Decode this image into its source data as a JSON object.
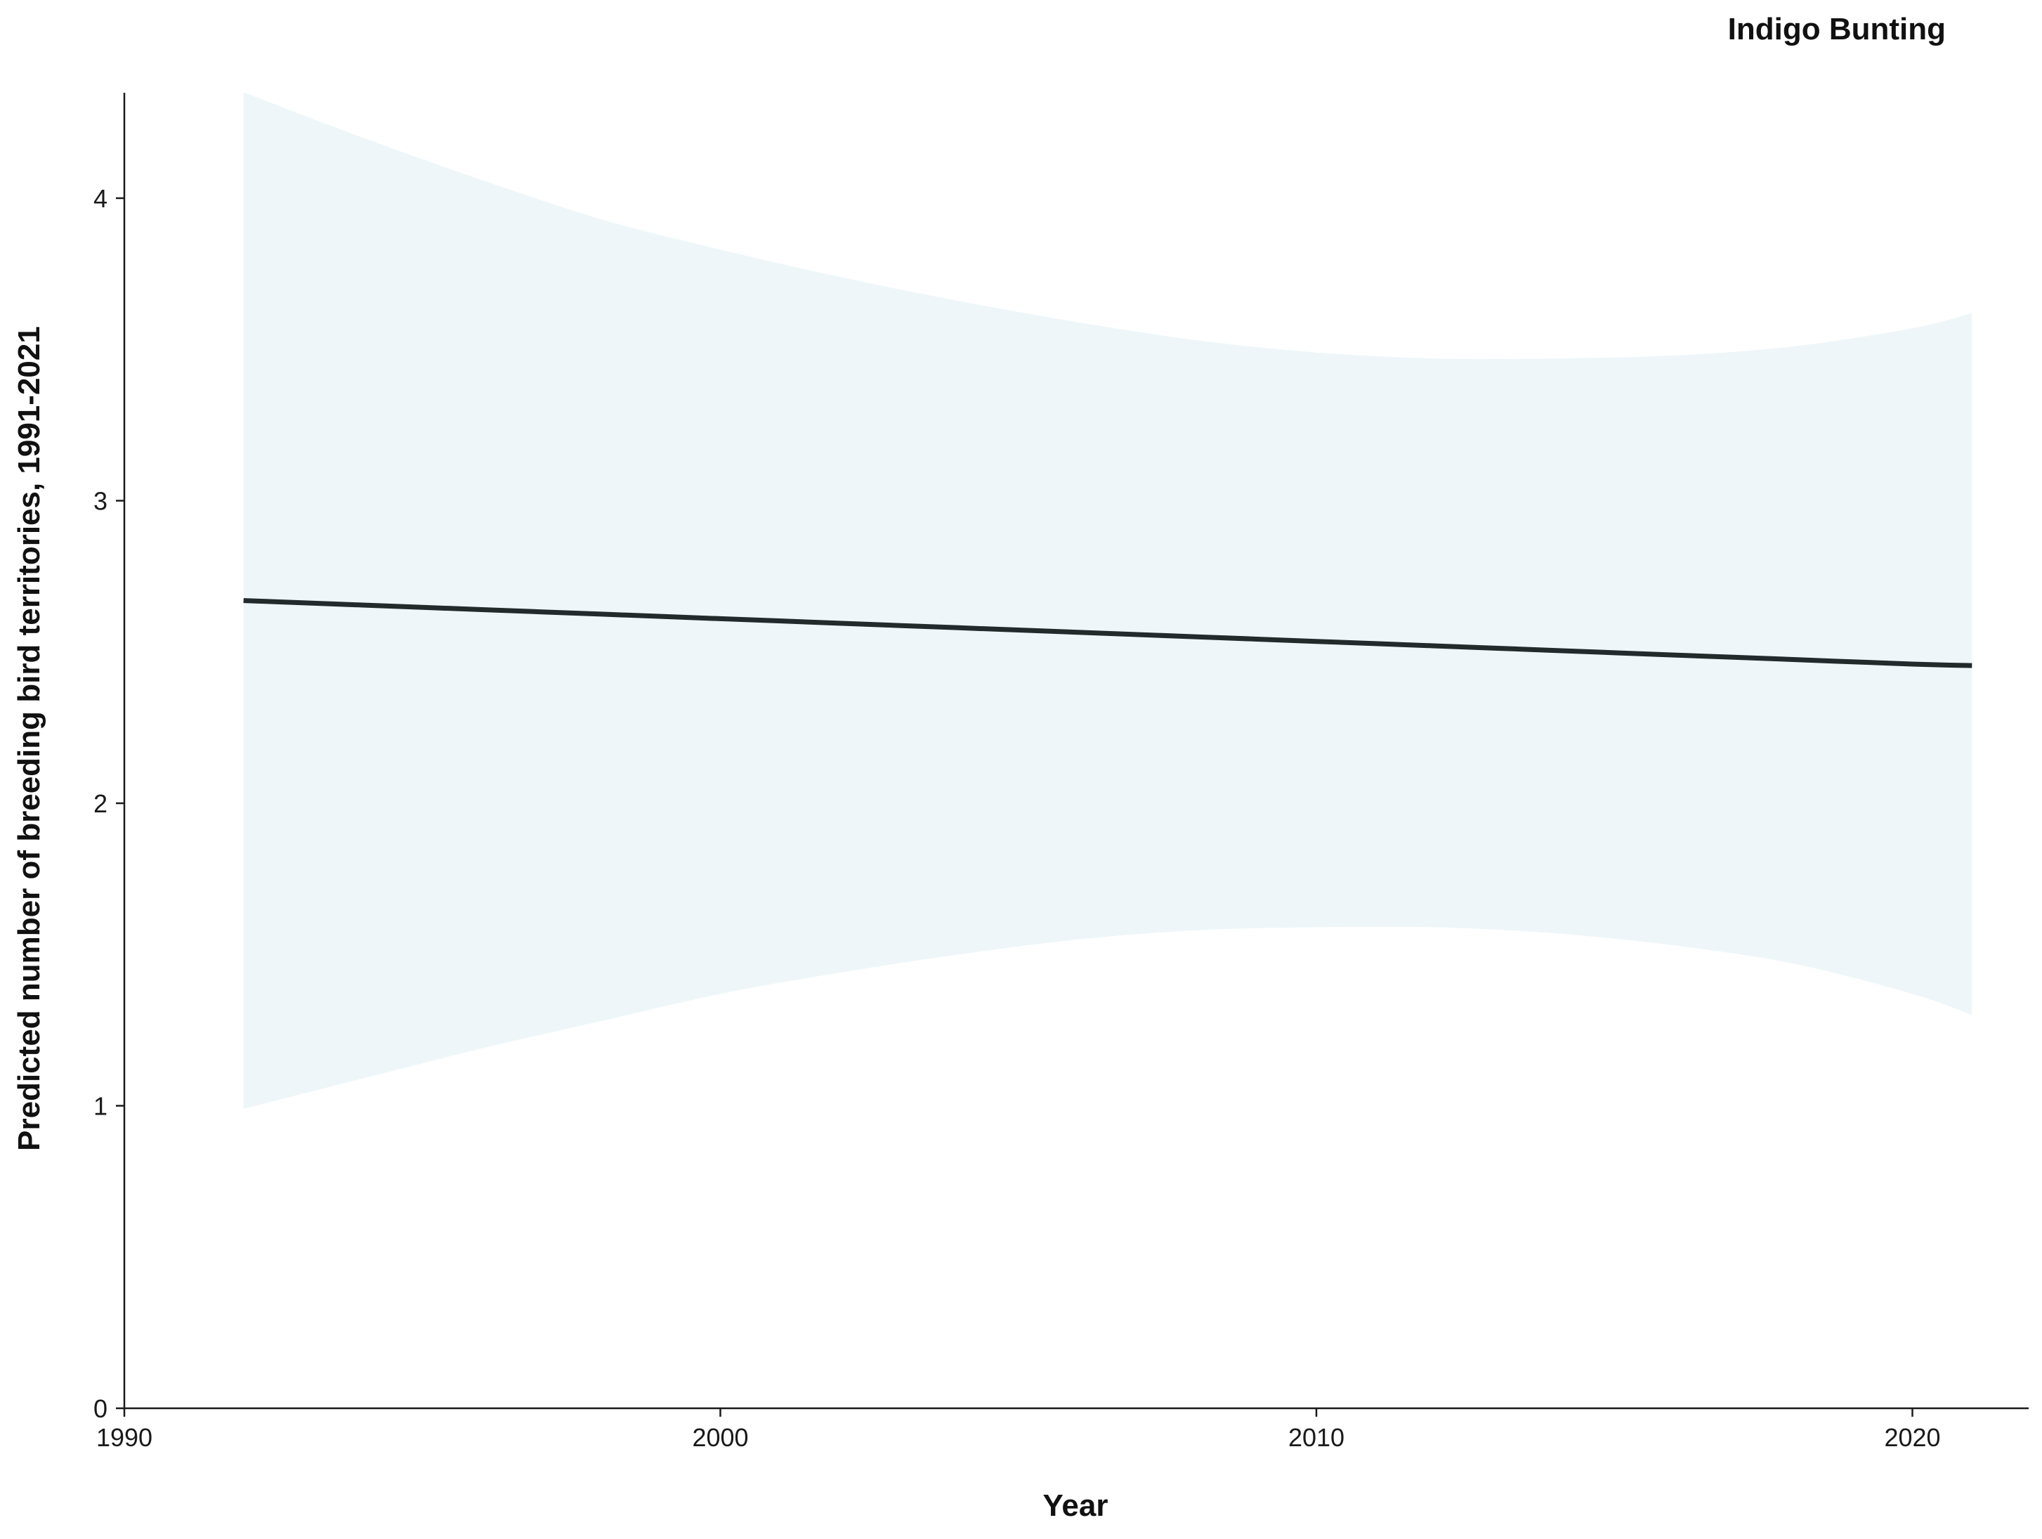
{
  "chart_data": {
    "type": "line",
    "title": "Indigo Bunting",
    "xlabel": "Year",
    "ylabel": "Predicted number of breeding bird territories, 1991-2021",
    "xlim": [
      1990,
      2022
    ],
    "ylim": [
      0,
      4.35
    ],
    "x_ticks": [
      1990,
      2000,
      2010,
      2020
    ],
    "x_tick_labels": [
      "1990",
      "2000",
      "2010",
      "2020"
    ],
    "y_ticks": [
      0,
      1,
      2,
      3,
      4
    ],
    "y_tick_labels": [
      "0",
      "1",
      "2",
      "3",
      "4"
    ],
    "grid": false,
    "legend": "none",
    "series": [
      {
        "x": [
          1992,
          1994,
          1996,
          1998,
          2000,
          2002,
          2004,
          2006,
          2008,
          2010,
          2012,
          2014,
          2016,
          2018,
          2020,
          2021
        ],
        "values": [
          2.67,
          2.655,
          2.64,
          2.625,
          2.61,
          2.595,
          2.58,
          2.565,
          2.55,
          2.535,
          2.52,
          2.505,
          2.49,
          2.475,
          2.46,
          2.455
        ],
        "ci_upper": [
          4.35,
          4.2,
          4.06,
          3.93,
          3.83,
          3.74,
          3.66,
          3.59,
          3.53,
          3.49,
          3.47,
          3.47,
          3.48,
          3.51,
          3.57,
          3.62
        ],
        "ci_lower": [
          0.99,
          1.09,
          1.19,
          1.28,
          1.37,
          1.44,
          1.5,
          1.55,
          1.58,
          1.59,
          1.59,
          1.57,
          1.53,
          1.47,
          1.37,
          1.3
        ],
        "line_color": "#222a2c",
        "band_color": "#eef6f9"
      }
    ]
  }
}
